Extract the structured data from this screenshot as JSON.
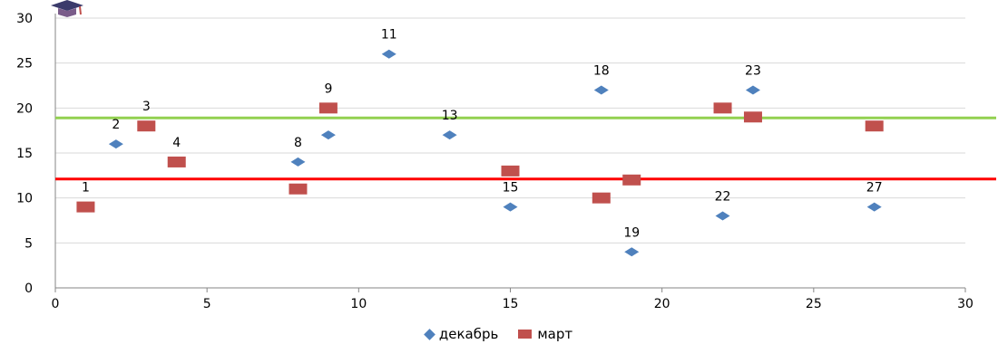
{
  "chart_data": {
    "type": "scatter",
    "xlim": [
      0,
      30
    ],
    "ylim": [
      0,
      30
    ],
    "xticks": [
      0,
      5,
      10,
      15,
      20,
      25,
      30
    ],
    "yticks": [
      0,
      5,
      10,
      15,
      20,
      25,
      30
    ],
    "grid": "horizontal",
    "legend_position": "bottom",
    "series": [
      {
        "name": "декабрь",
        "marker": "diamond",
        "color": "#4f81bd",
        "points": [
          {
            "x": 2,
            "y": 16,
            "label": "2"
          },
          {
            "x": 8,
            "y": 14,
            "label": "8"
          },
          {
            "x": 9,
            "y": 17,
            "label": ""
          },
          {
            "x": 11,
            "y": 26,
            "label": "11"
          },
          {
            "x": 13,
            "y": 17,
            "label": "13"
          },
          {
            "x": 15,
            "y": 9,
            "label": "15"
          },
          {
            "x": 18,
            "y": 22,
            "label": "18"
          },
          {
            "x": 19,
            "y": 4,
            "label": "19"
          },
          {
            "x": 22,
            "y": 8,
            "label": "22"
          },
          {
            "x": 23,
            "y": 22,
            "label": "23"
          },
          {
            "x": 27,
            "y": 9,
            "label": "27"
          }
        ]
      },
      {
        "name": "март",
        "marker": "square",
        "color": "#c0504d",
        "points": [
          {
            "x": 1,
            "y": 9,
            "label": "1"
          },
          {
            "x": 3,
            "y": 18,
            "label": "3"
          },
          {
            "x": 4,
            "y": 14,
            "label": "4"
          },
          {
            "x": 8,
            "y": 11,
            "label": ""
          },
          {
            "x": 9,
            "y": 20,
            "label": "9"
          },
          {
            "x": 15,
            "y": 13,
            "label": ""
          },
          {
            "x": 18,
            "y": 10,
            "label": ""
          },
          {
            "x": 19,
            "y": 12,
            "label": ""
          },
          {
            "x": 22,
            "y": 20,
            "label": ""
          },
          {
            "x": 23,
            "y": 19,
            "label": ""
          },
          {
            "x": 27,
            "y": 18,
            "label": ""
          }
        ]
      }
    ],
    "reference_lines": [
      {
        "y": 18.9,
        "color": "#92d050"
      },
      {
        "y": 12.1,
        "color": "#ff0000"
      }
    ]
  },
  "colors": {
    "grid": "#d9d9d9",
    "axis": "#868686"
  },
  "logo_icon": "graduation-cap-icon"
}
